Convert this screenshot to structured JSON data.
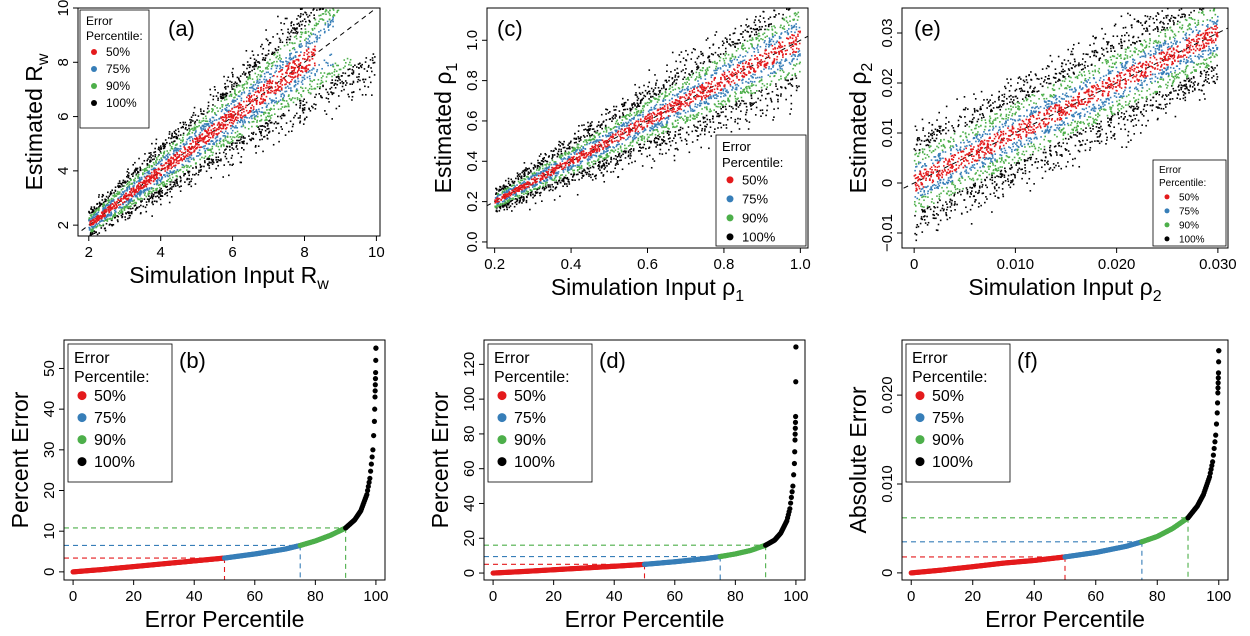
{
  "colors": {
    "p50": "#e41a1c",
    "p75": "#377eb8",
    "p90": "#4daf4a",
    "p100": "#000000"
  },
  "legend_title_line1": "Error",
  "legend_title_line2": "Percentile:",
  "legend_labels": [
    "50%",
    "75%",
    "90%",
    "100%"
  ],
  "chart_data": [
    {
      "id": "a",
      "type": "scatter",
      "panel_label": "(a)",
      "xlabel": "Simulation Input R",
      "xlabel_sub": "w",
      "ylabel": "Estimated R",
      "ylabel_sub": "w",
      "xlim": [
        1.7,
        10.1
      ],
      "ylim": [
        1.6,
        10
      ],
      "xticks": [
        2,
        4,
        6,
        8,
        10
      ],
      "yticks": [
        2,
        4,
        6,
        8,
        10
      ],
      "xtick_labels": [
        "2",
        "4",
        "6",
        "8",
        "10"
      ],
      "ytick_labels": [
        "2",
        "4",
        "6",
        "8",
        "10"
      ],
      "reference_line": "y = x",
      "legend_position": "top-left",
      "series": [
        {
          "name": "50%",
          "x_range": [
            2,
            8.3
          ],
          "relative_band": 0.05
        },
        {
          "name": "75%",
          "x_range": [
            2,
            8.8
          ],
          "relative_band": 0.1
        },
        {
          "name": "90%",
          "x_range": [
            2,
            9.3
          ],
          "relative_band": 0.16
        },
        {
          "name": "100%",
          "x_range": [
            2,
            10
          ],
          "relative_band": 0.3
        }
      ]
    },
    {
      "id": "c",
      "type": "scatter",
      "panel_label": "(c)",
      "xlabel": "Simulation Input ρ",
      "xlabel_sub": "1",
      "ylabel": "Estimated ρ",
      "ylabel_sub": "1",
      "xlim": [
        0.18,
        1.02
      ],
      "ylim": [
        -0.03,
        1.16
      ],
      "xticks": [
        0.2,
        0.4,
        0.6,
        0.8,
        1.0
      ],
      "yticks": [
        0,
        0.2,
        0.4,
        0.6,
        0.8,
        1.0
      ],
      "xtick_labels": [
        "0.2",
        "0.4",
        "0.6",
        "0.8",
        "1.0"
      ],
      "ytick_labels": [
        "0.0",
        "0.2",
        "0.4",
        "0.6",
        "0.8",
        "1.0"
      ],
      "reference_line": "y = x",
      "legend_position": "bottom-right",
      "series": [
        {
          "name": "50%",
          "x_range": [
            0.2,
            1.0
          ],
          "relative_band": 0.05
        },
        {
          "name": "75%",
          "x_range": [
            0.2,
            1.0
          ],
          "relative_band": 0.1
        },
        {
          "name": "90%",
          "x_range": [
            0.2,
            1.0
          ],
          "relative_band": 0.16
        },
        {
          "name": "100%",
          "x_range": [
            0.2,
            1.0
          ],
          "relative_band": 0.35
        }
      ]
    },
    {
      "id": "e",
      "type": "scatter",
      "panel_label": "(e)",
      "xlabel": "Simulation Input ρ",
      "xlabel_sub": "2",
      "ylabel": "Estimated ρ",
      "ylabel_sub": "2",
      "xlim": [
        -0.0012,
        0.031
      ],
      "ylim": [
        -0.013,
        0.035
      ],
      "xticks": [
        0,
        0.01,
        0.02,
        0.03
      ],
      "yticks": [
        -0.01,
        0,
        0.01,
        0.02,
        0.03
      ],
      "xtick_labels": [
        "0",
        "0.010",
        "0.020",
        "0.030"
      ],
      "ytick_labels": [
        "−0.01",
        "0",
        "0.01",
        "0.02",
        "0.03"
      ],
      "reference_line": "y = x",
      "legend_position": "bottom-right",
      "series": [
        {
          "name": "50%",
          "x_range": [
            0,
            0.03
          ],
          "absolute_band": 0.0018
        },
        {
          "name": "75%",
          "x_range": [
            0,
            0.03
          ],
          "absolute_band": 0.0035
        },
        {
          "name": "90%",
          "x_range": [
            0,
            0.03
          ],
          "absolute_band": 0.006
        },
        {
          "name": "100%",
          "x_range": [
            0,
            0.03
          ],
          "absolute_band": 0.012
        }
      ]
    },
    {
      "id": "b",
      "type": "line",
      "panel_label": "(b)",
      "xlabel": "Error Percentile",
      "ylabel": "Percent Error",
      "xlim": [
        -3,
        103
      ],
      "ylim": [
        -2,
        57
      ],
      "xticks": [
        0,
        20,
        40,
        60,
        80,
        100
      ],
      "yticks": [
        0,
        10,
        20,
        30,
        40,
        50
      ],
      "xtick_labels": [
        "0",
        "20",
        "40",
        "60",
        "80",
        "100"
      ],
      "ytick_labels": [
        "0",
        "10",
        "20",
        "30",
        "40",
        "50"
      ],
      "legend_position": "top-left",
      "cutoffs": [
        {
          "percentile": 50,
          "value": 3.4
        },
        {
          "percentile": 75,
          "value": 6.5
        },
        {
          "percentile": 90,
          "value": 10.8
        }
      ],
      "curve": [
        [
          0,
          0
        ],
        [
          10,
          0.6
        ],
        [
          20,
          1.3
        ],
        [
          30,
          2
        ],
        [
          40,
          2.7
        ],
        [
          50,
          3.4
        ],
        [
          60,
          4.4
        ],
        [
          70,
          5.6
        ],
        [
          75,
          6.5
        ],
        [
          80,
          7.6
        ],
        [
          85,
          9
        ],
        [
          90,
          10.8
        ],
        [
          93,
          12.8
        ],
        [
          95,
          15
        ],
        [
          97,
          19
        ],
        [
          98,
          23
        ],
        [
          99,
          30
        ],
        [
          99.5,
          37
        ],
        [
          99.9,
          49
        ],
        [
          100,
          55
        ]
      ]
    },
    {
      "id": "d",
      "type": "line",
      "panel_label": "(d)",
      "xlabel": "Error Percentile",
      "ylabel": "Percent Error",
      "xlim": [
        -3,
        103
      ],
      "ylim": [
        -4,
        134
      ],
      "xticks": [
        0,
        20,
        40,
        60,
        80,
        100
      ],
      "yticks": [
        0,
        20,
        40,
        60,
        80,
        100,
        120
      ],
      "xtick_labels": [
        "0",
        "20",
        "40",
        "60",
        "80",
        "100"
      ],
      "ytick_labels": [
        "0",
        "20",
        "40",
        "60",
        "80",
        "100",
        "120"
      ],
      "legend_position": "top-left",
      "cutoffs": [
        {
          "percentile": 50,
          "value": 5
        },
        {
          "percentile": 75,
          "value": 9.5
        },
        {
          "percentile": 90,
          "value": 16
        }
      ],
      "curve": [
        [
          0,
          0
        ],
        [
          10,
          0.9
        ],
        [
          20,
          1.9
        ],
        [
          30,
          2.9
        ],
        [
          40,
          3.9
        ],
        [
          50,
          5
        ],
        [
          60,
          6.5
        ],
        [
          70,
          8.3
        ],
        [
          75,
          9.5
        ],
        [
          80,
          11
        ],
        [
          85,
          13
        ],
        [
          90,
          16
        ],
        [
          93,
          19
        ],
        [
          95,
          23
        ],
        [
          97,
          30
        ],
        [
          98,
          37
        ],
        [
          99,
          50
        ],
        [
          99.5,
          63
        ],
        [
          99.9,
          90
        ],
        [
          100,
          130
        ]
      ]
    },
    {
      "id": "f",
      "type": "line",
      "panel_label": "(f)",
      "xlabel": "Error Percentile",
      "ylabel": "Absolute Error",
      "xlim": [
        -3,
        103
      ],
      "ylim": [
        -0.0008,
        0.0262
      ],
      "xticks": [
        0,
        20,
        40,
        60,
        80,
        100
      ],
      "yticks": [
        0,
        0.01,
        0.02
      ],
      "xtick_labels": [
        "0",
        "20",
        "40",
        "60",
        "80",
        "100"
      ],
      "ytick_labels": [
        "0",
        "0.010",
        "0.020"
      ],
      "legend_position": "top-left",
      "cutoffs": [
        {
          "percentile": 50,
          "value": 0.0018
        },
        {
          "percentile": 75,
          "value": 0.0035
        },
        {
          "percentile": 90,
          "value": 0.0062
        }
      ],
      "curve": [
        [
          0,
          0
        ],
        [
          10,
          0.00032
        ],
        [
          20,
          0.0007
        ],
        [
          30,
          0.0011
        ],
        [
          40,
          0.0014
        ],
        [
          50,
          0.0018
        ],
        [
          60,
          0.0023
        ],
        [
          70,
          0.003
        ],
        [
          75,
          0.0035
        ],
        [
          80,
          0.0041
        ],
        [
          85,
          0.005
        ],
        [
          90,
          0.0062
        ],
        [
          93,
          0.0075
        ],
        [
          95,
          0.0088
        ],
        [
          97,
          0.0108
        ],
        [
          98,
          0.0125
        ],
        [
          99,
          0.0155
        ],
        [
          99.5,
          0.018
        ],
        [
          99.9,
          0.0225
        ],
        [
          100,
          0.025
        ]
      ]
    }
  ]
}
